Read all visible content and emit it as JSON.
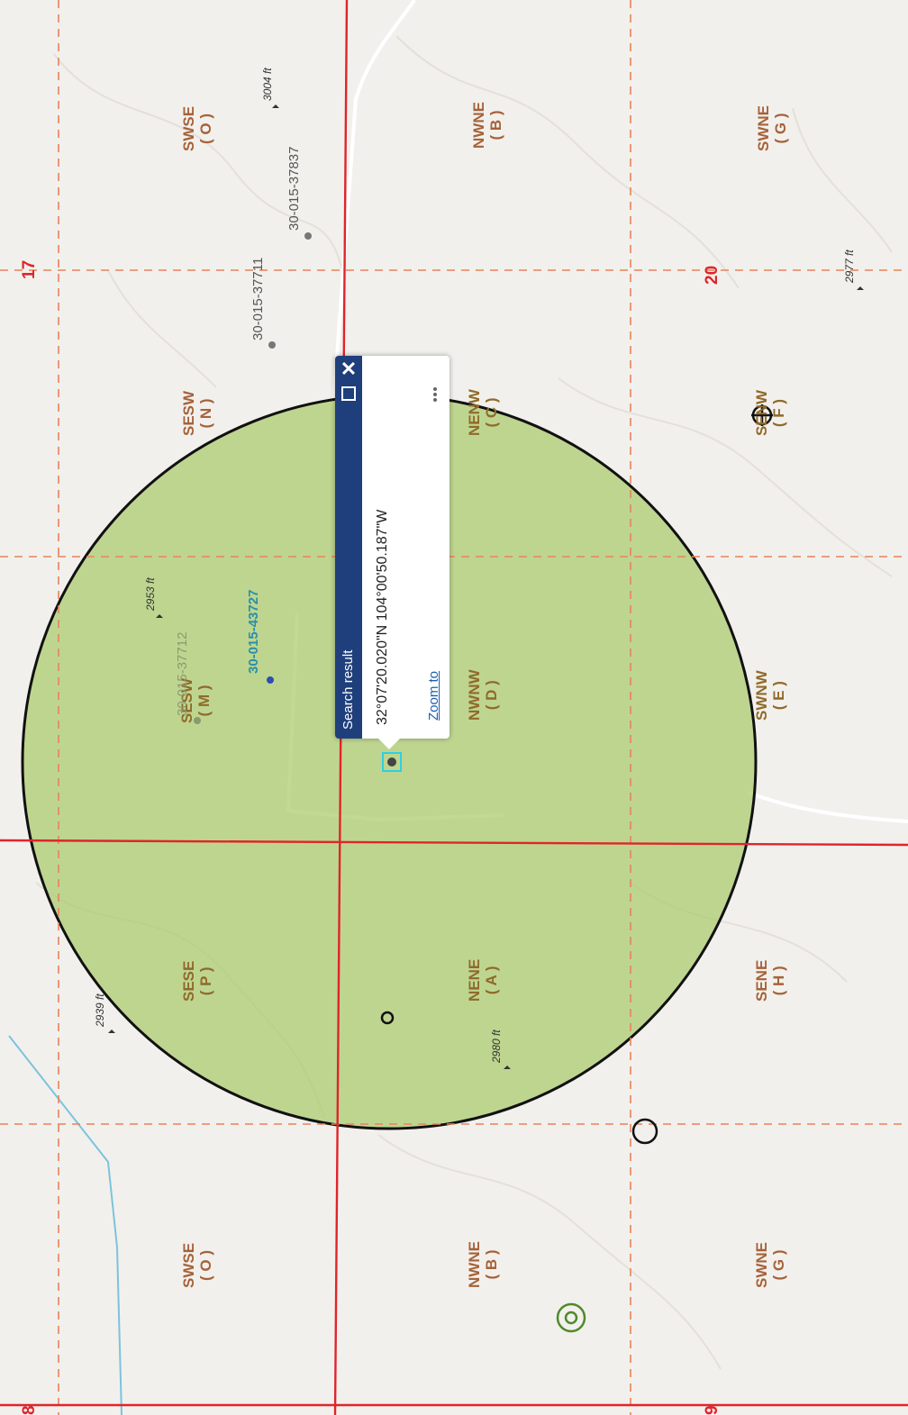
{
  "map": {
    "colors": {
      "background": "#f2f0ec",
      "buffer_fill": "#a8c96a",
      "section_line": "#e0242b",
      "quarter_line": "#e8835a",
      "road": "#ffffff",
      "river": "#7cc3de"
    },
    "sections": [
      "17",
      "20",
      "8",
      "9"
    ],
    "quarter_quarters": [
      {
        "name": "SWSE",
        "letter": "( O )"
      },
      {
        "name": "NWNE",
        "letter": "( B )"
      },
      {
        "name": "SWNE",
        "letter": "( G )"
      },
      {
        "name": "SESW",
        "letter": "( N )"
      },
      {
        "name": "NENW",
        "letter": "( C )"
      },
      {
        "name": "SENW",
        "letter": "( F )"
      },
      {
        "name": "SESW",
        "letter": "( M )"
      },
      {
        "name": "NWNW",
        "letter": "( D )"
      },
      {
        "name": "SWNW",
        "letter": "( E )"
      },
      {
        "name": "SESE",
        "letter": "( P )"
      },
      {
        "name": "NENE",
        "letter": "( A )"
      },
      {
        "name": "SENE",
        "letter": "( H )"
      },
      {
        "name": "SWSE",
        "letter": "( O )"
      },
      {
        "name": "NWNE",
        "letter": "( B )"
      },
      {
        "name": "SWNE",
        "letter": "( G )"
      }
    ],
    "elevations": [
      "3004 ft",
      "2977 ft",
      "2953 ft",
      "2939 ft",
      "2980 ft"
    ],
    "wells": [
      "30-015-37837",
      "30-015-37711",
      "30-015-37712",
      "30-015-43727"
    ]
  },
  "popup": {
    "title": "Search result",
    "coordinates": "32°07'20.020\"N 104°00'50.187\"W",
    "zoom_label": "Zoom to",
    "close_symbol": "✕"
  }
}
